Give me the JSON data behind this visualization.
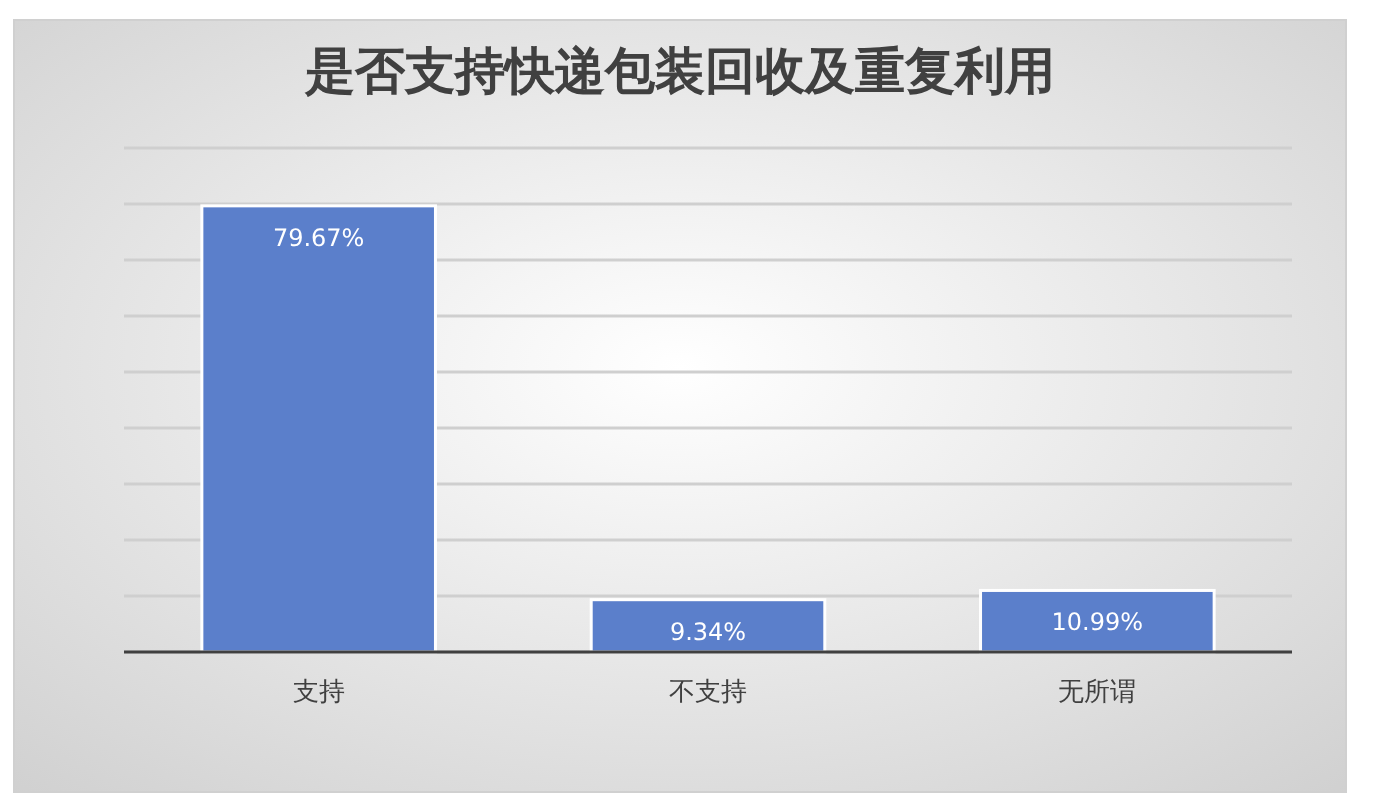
{
  "chart_data": {
    "type": "bar",
    "title": "是否支持快递包装回收及重复利用",
    "categories": [
      "支持",
      "不支持",
      "无所谓"
    ],
    "values": [
      79.67,
      9.34,
      10.99
    ],
    "value_labels": [
      "79.67%",
      "9.34%",
      "10.99%"
    ],
    "color": "#5b7fcb",
    "ylim": [
      0,
      90
    ],
    "yticks": [
      {
        "value": 0,
        "label": null
      },
      {
        "value": 10,
        "label": null
      },
      {
        "value": 20,
        "label": null
      },
      {
        "value": 30,
        "label": null
      },
      {
        "value": 40,
        "label": null
      },
      {
        "value": 50,
        "label": null
      },
      {
        "value": 60,
        "label": null
      },
      {
        "value": 70,
        "label": null
      },
      {
        "value": 80,
        "label": null
      },
      {
        "value": 90,
        "label": null
      }
    ],
    "grid": "y",
    "tick_labels": "x"
  }
}
